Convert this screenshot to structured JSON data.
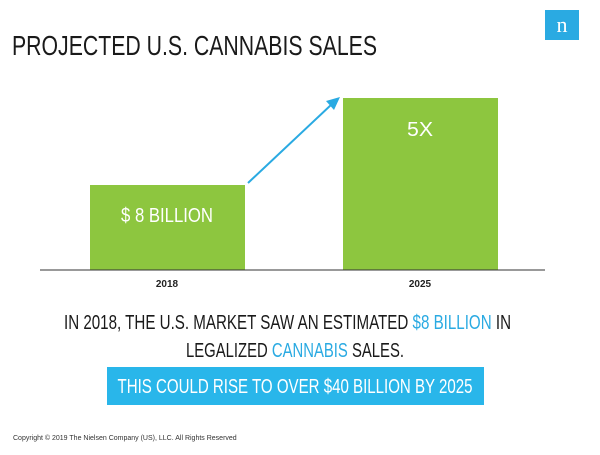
{
  "header": {
    "title": "PROJECTED U.S. CANNABIS SALES",
    "logo": "n"
  },
  "bars": [
    {
      "label": "$ 8 BILLION",
      "category": "2018"
    },
    {
      "label": "5X",
      "category": "2025"
    }
  ],
  "statement": {
    "line1": [
      "IN 2018, THE U.S. MARKET SAW AN ESTIMATED",
      "$8 BILLION",
      "IN"
    ],
    "line2": [
      "LEGALIZED",
      "CANNABIS",
      "SALES."
    ],
    "highlight": "THIS COULD RISE TO OVER $40 BILLION BY 2025"
  },
  "footer": {
    "copyright": "Copyright © 2019 The Nielsen Company (US), LLC. All Rights Reserved"
  }
}
